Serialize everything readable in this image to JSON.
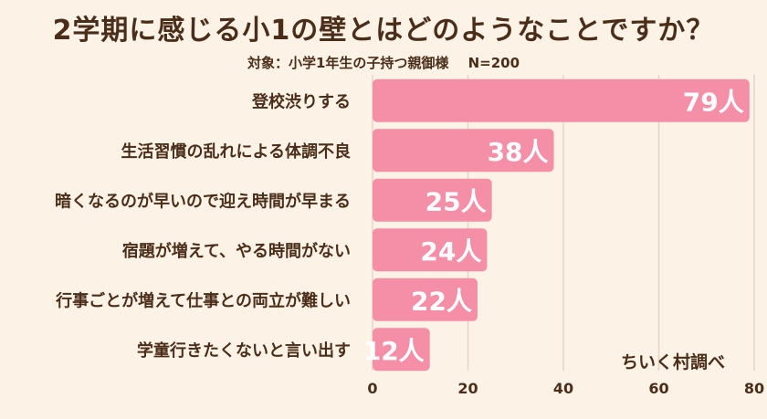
{
  "chart_data": {
    "type": "bar",
    "orientation": "horizontal",
    "title": "2学期に感じる小1の壁とはどのようなことですか？",
    "subtitle_target": "対象：小学1年生の子持つ親御様",
    "subtitle_n": "N=200",
    "categories": [
      "登校渋りする",
      "生活習慣の乱れによる体調不良",
      "暗くなるのが早いので迎え時間が早まる",
      "宿題が増えて、やる時間がない",
      "行事ごとが増えて仕事との両立が難しい",
      "学童行きたくないと言い出す"
    ],
    "values": [
      79,
      38,
      25,
      24,
      22,
      12
    ],
    "value_labels": [
      "79人",
      "38人",
      "25人",
      "24人",
      "22人",
      "12人"
    ],
    "xlim": [
      0,
      80
    ],
    "x_ticks": [
      "0",
      "20",
      "40",
      "60",
      "80"
    ],
    "grid": true,
    "bar_color": "#f58fa8",
    "credit": "ちいく村調べ"
  }
}
